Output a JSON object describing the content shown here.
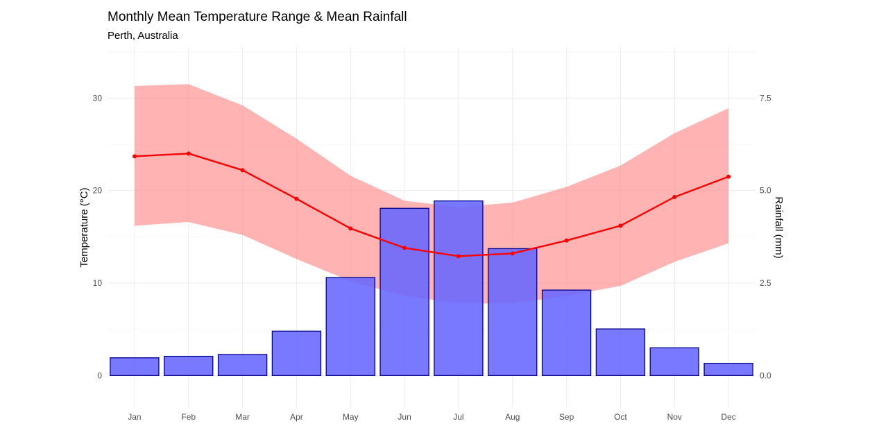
{
  "title": "Monthly Mean Temperature Range & Mean Rainfall",
  "subtitle": "Perth, Australia",
  "chart_data": {
    "type": "bar+line+area",
    "title": "Monthly Mean Temperature Range & Mean Rainfall",
    "subtitle": "Perth, Australia",
    "categories": [
      "Jan",
      "Feb",
      "Mar",
      "Apr",
      "May",
      "Jun",
      "Jul",
      "Aug",
      "Sep",
      "Oct",
      "Nov",
      "Dec"
    ],
    "ylabel": "Temperature (°C)",
    "y2label": "Rainfall (mm)",
    "ylim": [
      -3.5,
      35.5
    ],
    "y2lim": [
      -0.875,
      8.875
    ],
    "yticks": [
      0,
      10,
      20,
      30
    ],
    "y2ticks": [
      "0.0",
      "2.5",
      "5.0",
      "7.5"
    ],
    "y2tick_values": [
      0,
      2.5,
      5.0,
      7.5
    ],
    "grid": true,
    "series": [
      {
        "name": "Rainfall",
        "type": "bar",
        "axis": "right",
        "color": "#6666ff",
        "edge_color": "#00008b",
        "values": [
          0.48,
          0.52,
          0.57,
          1.2,
          2.65,
          4.52,
          4.72,
          3.43,
          2.31,
          1.26,
          0.75,
          0.33
        ]
      },
      {
        "name": "Mean Temperature",
        "type": "line",
        "axis": "left",
        "color": "#ff0000",
        "values": [
          23.7,
          24.0,
          22.2,
          19.1,
          15.9,
          13.8,
          12.9,
          13.2,
          14.6,
          16.2,
          19.3,
          21.5
        ]
      },
      {
        "name": "Temperature Range",
        "type": "ribbon",
        "axis": "left",
        "color": "#ff8080",
        "low": [
          16.2,
          16.6,
          15.2,
          12.6,
          10.2,
          8.6,
          7.8,
          7.8,
          8.6,
          9.7,
          12.3,
          14.3
        ],
        "high": [
          31.3,
          31.5,
          29.2,
          25.6,
          21.6,
          18.9,
          18.2,
          18.7,
          20.4,
          22.7,
          26.2,
          28.9
        ]
      }
    ]
  }
}
